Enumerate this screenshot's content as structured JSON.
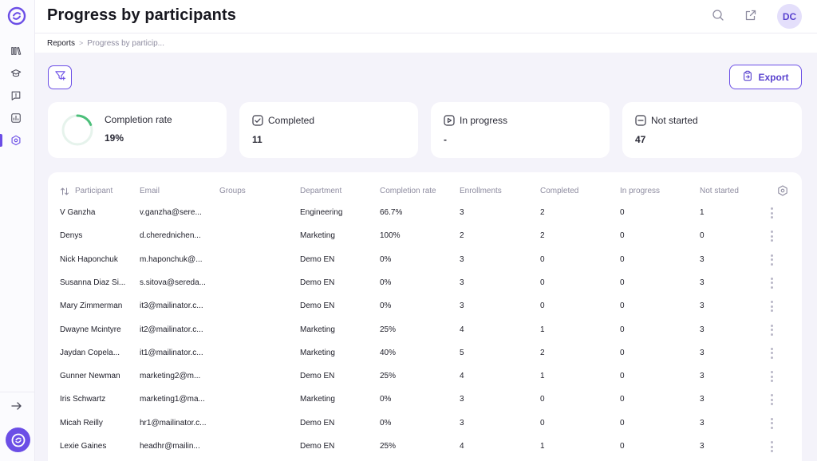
{
  "page": {
    "title": "Progress by participants"
  },
  "breadcrumb": {
    "root": "Reports",
    "separator": ">",
    "current": "Progress by particip..."
  },
  "user": {
    "initials": "DC"
  },
  "sidebar": {
    "items": [
      {
        "icon": "library-icon"
      },
      {
        "icon": "graduation-cap-icon"
      },
      {
        "icon": "feedback-icon"
      },
      {
        "icon": "analytics-icon"
      },
      {
        "icon": "hexagon-settings-icon",
        "active": true
      }
    ]
  },
  "toolbar": {
    "export_label": "Export"
  },
  "stats": {
    "completion_rate": {
      "label": "Completion rate",
      "value": "19%",
      "percent": 19
    },
    "completed": {
      "label": "Completed",
      "value": "11"
    },
    "in_progress": {
      "label": "In progress",
      "value": "-"
    },
    "not_started": {
      "label": "Not started",
      "value": "47"
    }
  },
  "table": {
    "columns": [
      "Participant",
      "Email",
      "Groups",
      "Department",
      "Completion rate",
      "Enrollments",
      "Completed",
      "In progress",
      "Not started"
    ],
    "rows": [
      [
        "V Ganzha",
        "v.ganzha@sere...",
        "",
        "Engineering",
        "66.7%",
        "3",
        "2",
        "0",
        "1"
      ],
      [
        "Denys",
        "d.cherednichen...",
        "",
        "Marketing",
        "100%",
        "2",
        "2",
        "0",
        "0"
      ],
      [
        "Nick Haponchuk",
        "m.haponchuk@...",
        "",
        "Demo EN",
        "0%",
        "3",
        "0",
        "0",
        "3"
      ],
      [
        "Susanna Diaz Si...",
        "s.sitova@sereda...",
        "",
        "Demo EN",
        "0%",
        "3",
        "0",
        "0",
        "3"
      ],
      [
        "Mary Zimmerman",
        "it3@mailinator.c...",
        "",
        "Demo EN",
        "0%",
        "3",
        "0",
        "0",
        "3"
      ],
      [
        "Dwayne Mcintyre",
        "it2@mailinator.c...",
        "",
        "Marketing",
        "25%",
        "4",
        "1",
        "0",
        "3"
      ],
      [
        "Jaydan Copela...",
        "it1@mailinator.c...",
        "",
        "Marketing",
        "40%",
        "5",
        "2",
        "0",
        "3"
      ],
      [
        "Gunner Newman",
        "marketing2@m...",
        "",
        "Demo EN",
        "25%",
        "4",
        "1",
        "0",
        "3"
      ],
      [
        "Iris Schwartz",
        "marketing1@ma...",
        "",
        "Marketing",
        "0%",
        "3",
        "0",
        "0",
        "3"
      ],
      [
        "Micah Reilly",
        "hr1@mailinator.c...",
        "",
        "Demo EN",
        "0%",
        "3",
        "0",
        "0",
        "3"
      ],
      [
        "Lexie Gaines",
        "headhr@mailin...",
        "",
        "Demo EN",
        "25%",
        "4",
        "1",
        "0",
        "3"
      ]
    ]
  },
  "colors": {
    "accent": "#6b4ee6",
    "ring_progress": "#4cbf7a",
    "ring_track": "#e6f3ec",
    "background": "#f4f3fa"
  }
}
